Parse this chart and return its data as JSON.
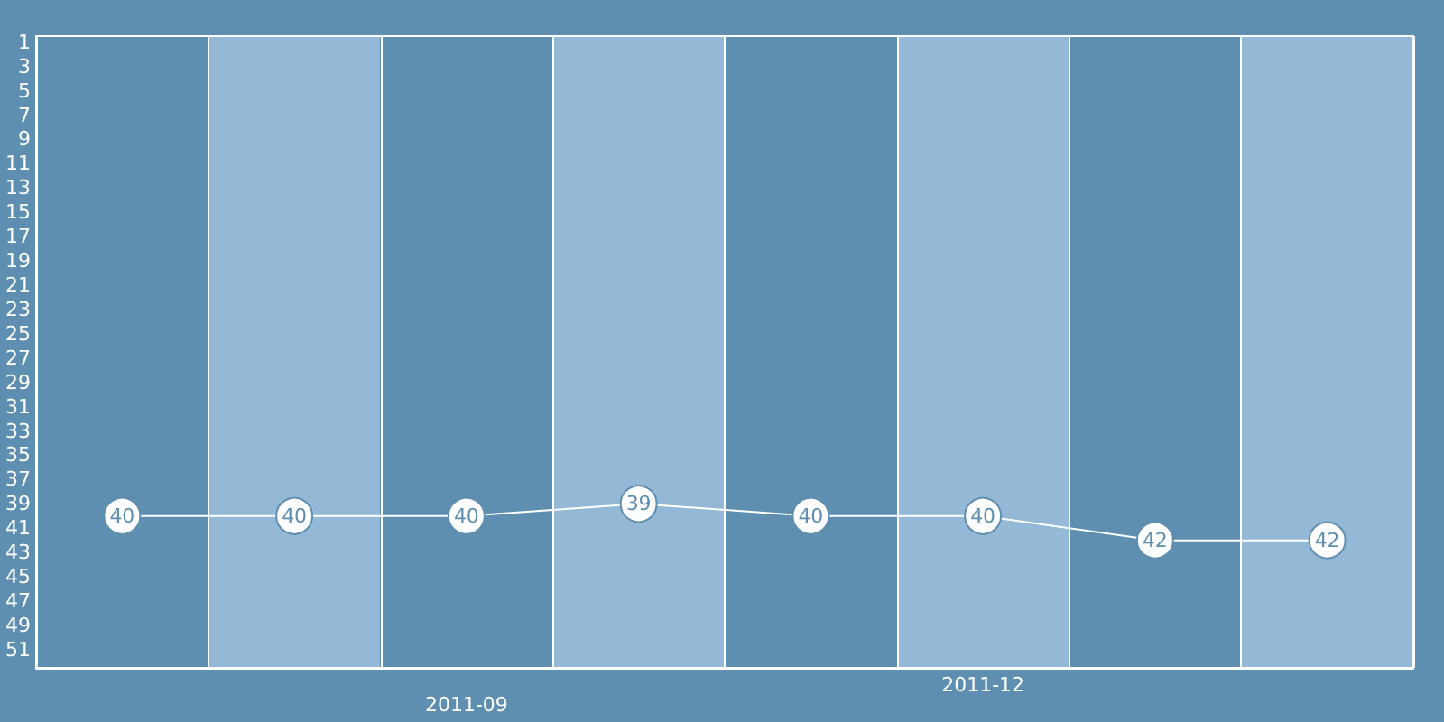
{
  "chart_data": {
    "type": "line",
    "categories": [
      null,
      null,
      "2011-09",
      null,
      null,
      "2011-12",
      null,
      null
    ],
    "series": [
      {
        "color": "#ffffff",
        "values": [
          40,
          40,
          40,
          39,
          40,
          40,
          42,
          42
        ]
      }
    ],
    "ylim": [
      52.5,
      0.5
    ],
    "yticks": [
      1,
      3,
      5,
      7,
      9,
      11,
      13,
      15,
      17,
      19,
      21,
      23,
      25,
      27,
      29,
      31,
      33,
      35,
      37,
      39,
      41,
      43,
      45,
      47,
      49,
      51
    ],
    "grid": "x",
    "marker": "circle",
    "data_labels": true,
    "line_style": "solid"
  }
}
